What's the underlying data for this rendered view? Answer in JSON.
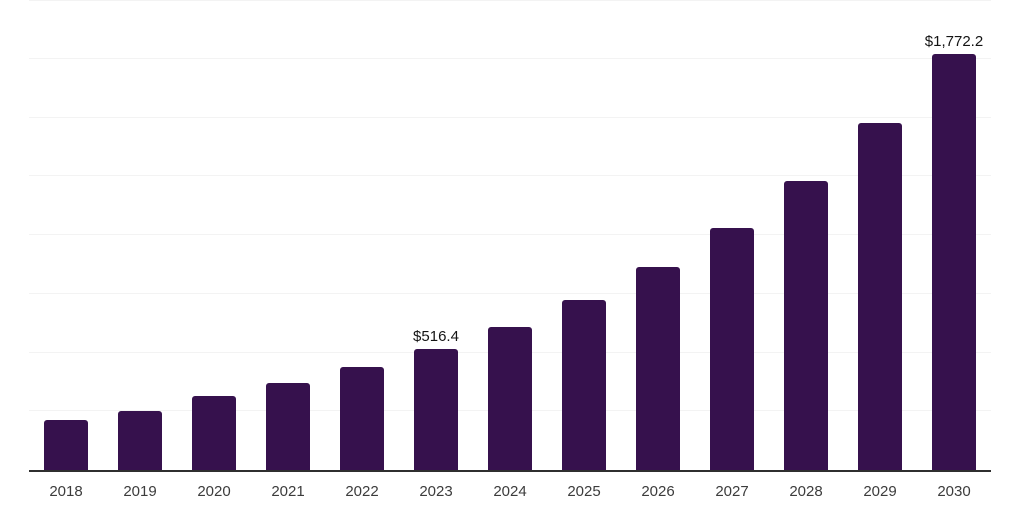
{
  "chart_data": {
    "type": "bar",
    "title": "",
    "xlabel": "",
    "ylabel": "",
    "categories": [
      "2018",
      "2019",
      "2020",
      "2021",
      "2022",
      "2023",
      "2024",
      "2025",
      "2026",
      "2027",
      "2028",
      "2029",
      "2030"
    ],
    "values": [
      212,
      250,
      315,
      369,
      437,
      516.4,
      609,
      723,
      862,
      1028,
      1228,
      1475,
      1772.2
    ],
    "data_labels": {
      "2023": "$516.4",
      "2030": "$1,772.2"
    },
    "ylim": [
      0,
      2000
    ],
    "gridline_interval": 250,
    "grid": "horizontal",
    "legend": "none",
    "y_axis_tick_labels_visible": false
  },
  "colors": {
    "bar": "#36114d",
    "gridline": "#f3f3f3",
    "axis_line": "#2f2f2f",
    "tick_label": "#3c3c3c",
    "data_label": "#141414",
    "background": "#ffffff"
  }
}
